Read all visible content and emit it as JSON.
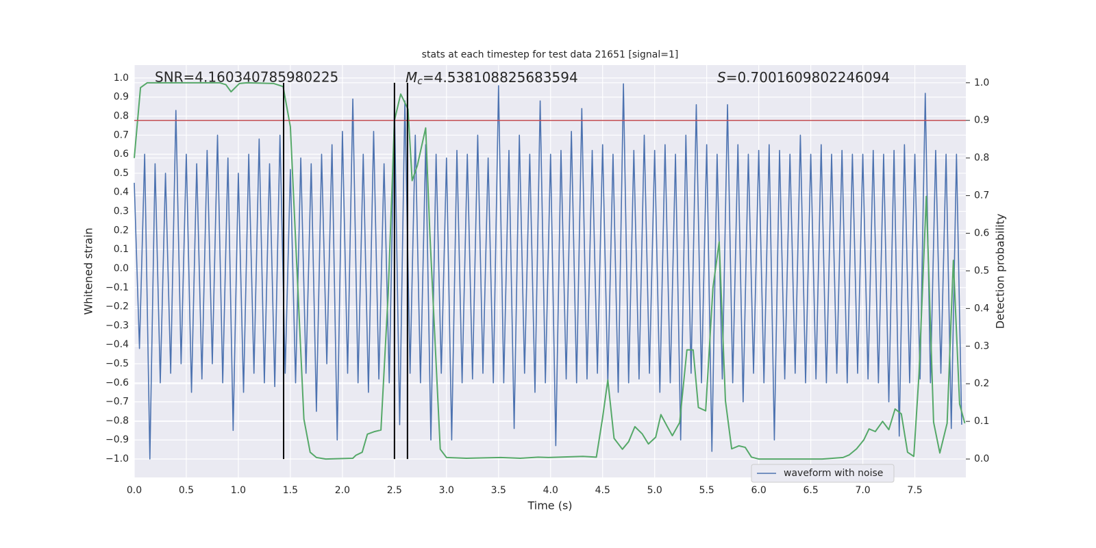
{
  "chart_data": {
    "type": "line",
    "title": "stats at each timestep for test data 21651 [signal=1]",
    "xlabel": "Time (s)",
    "ylabel": "Whitened strain",
    "y2label": "Detection probability",
    "xlim": [
      0,
      7.99
    ],
    "ylim": [
      -1.097,
      1.068
    ],
    "y2lim": [
      -0.049,
      1.047
    ],
    "grid": true,
    "legend": "lower right",
    "xticks": [
      {
        "value": 0,
        "label": "0.0"
      },
      {
        "value": 0.5,
        "label": "0.5"
      },
      {
        "value": 1,
        "label": "1.0"
      },
      {
        "value": 1.5,
        "label": "1.5"
      },
      {
        "value": 2,
        "label": "2.0"
      },
      {
        "value": 2.5,
        "label": "2.5"
      },
      {
        "value": 3,
        "label": "3.0"
      },
      {
        "value": 3.5,
        "label": "3.5"
      },
      {
        "value": 4,
        "label": "4.0"
      },
      {
        "value": 4.5,
        "label": "4.5"
      },
      {
        "value": 5,
        "label": "5.0"
      },
      {
        "value": 5.5,
        "label": "5.5"
      },
      {
        "value": 6,
        "label": "6.0"
      },
      {
        "value": 6.5,
        "label": "6.5"
      },
      {
        "value": 7,
        "label": "7.0"
      },
      {
        "value": 7.5,
        "label": "7.5"
      }
    ],
    "yticks": [
      {
        "value": -1,
        "label": "−1.0"
      },
      {
        "value": -0.9,
        "label": "−0.9"
      },
      {
        "value": -0.8,
        "label": "−0.8"
      },
      {
        "value": -0.7,
        "label": "−0.7"
      },
      {
        "value": -0.6,
        "label": "−0.6"
      },
      {
        "value": -0.5,
        "label": "−0.5"
      },
      {
        "value": -0.4,
        "label": "−0.4"
      },
      {
        "value": -0.3,
        "label": "−0.3"
      },
      {
        "value": -0.2,
        "label": "−0.2"
      },
      {
        "value": -0.1,
        "label": "−0.1"
      },
      {
        "value": 0,
        "label": "0.0"
      },
      {
        "value": 0.1,
        "label": "0.1"
      },
      {
        "value": 0.2,
        "label": "0.2"
      },
      {
        "value": 0.3,
        "label": "0.3"
      },
      {
        "value": 0.4,
        "label": "0.4"
      },
      {
        "value": 0.5,
        "label": "0.5"
      },
      {
        "value": 0.6,
        "label": "0.6"
      },
      {
        "value": 0.7,
        "label": "0.7"
      },
      {
        "value": 0.8,
        "label": "0.8"
      },
      {
        "value": 0.9,
        "label": "0.9"
      },
      {
        "value": 1,
        "label": "1.0"
      }
    ],
    "y2ticks": [
      {
        "value": 0,
        "label": "0.0"
      },
      {
        "value": 0.1,
        "label": "0.1"
      },
      {
        "value": 0.2,
        "label": "0.2"
      },
      {
        "value": 0.3,
        "label": "0.3"
      },
      {
        "value": 0.4,
        "label": "0.4"
      },
      {
        "value": 0.5,
        "label": "0.5"
      },
      {
        "value": 0.6,
        "label": "0.6"
      },
      {
        "value": 0.7,
        "label": "0.7"
      },
      {
        "value": 0.8,
        "label": "0.8"
      },
      {
        "value": 0.9,
        "label": "0.9"
      },
      {
        "value": 1,
        "label": "1.0"
      }
    ],
    "series": [
      {
        "name": "waveform with noise",
        "color": "#4c72b0",
        "x": [
          0,
          0.05,
          0.1,
          0.15,
          0.2,
          0.25,
          0.3,
          0.35,
          0.4,
          0.45,
          0.5,
          0.55,
          0.6,
          0.65,
          0.7,
          0.75,
          0.8,
          0.85,
          0.9,
          0.95,
          1,
          1.05,
          1.1,
          1.15,
          1.2,
          1.25,
          1.3,
          1.35,
          1.4,
          1.45,
          1.5,
          1.55,
          1.6,
          1.65,
          1.7,
          1.75,
          1.8,
          1.85,
          1.9,
          1.95,
          2,
          2.05,
          2.1,
          2.15,
          2.2,
          2.25,
          2.3,
          2.35,
          2.4,
          2.45,
          2.5,
          2.55,
          2.6,
          2.65,
          2.7,
          2.75,
          2.8,
          2.85,
          2.9,
          2.95,
          3,
          3.05,
          3.1,
          3.15,
          3.2,
          3.25,
          3.3,
          3.35,
          3.4,
          3.45,
          3.5,
          3.55,
          3.6,
          3.65,
          3.7,
          3.75,
          3.8,
          3.85,
          3.9,
          3.95,
          4,
          4.05,
          4.1,
          4.15,
          4.2,
          4.25,
          4.3,
          4.35,
          4.4,
          4.45,
          4.5,
          4.55,
          4.6,
          4.65,
          4.7,
          4.75,
          4.8,
          4.85,
          4.9,
          4.95,
          5,
          5.05,
          5.1,
          5.15,
          5.2,
          5.25,
          5.3,
          5.35,
          5.4,
          5.45,
          5.5,
          5.55,
          5.6,
          5.65,
          5.7,
          5.75,
          5.8,
          5.85,
          5.9,
          5.95,
          6,
          6.05,
          6.1,
          6.15,
          6.2,
          6.25,
          6.3,
          6.35,
          6.4,
          6.45,
          6.5,
          6.55,
          6.6,
          6.65,
          6.7,
          6.75,
          6.8,
          6.85,
          6.9,
          6.95,
          7,
          7.05,
          7.1,
          7.15,
          7.2,
          7.25,
          7.3,
          7.35,
          7.4,
          7.45,
          7.5,
          7.55,
          7.6,
          7.65,
          7.7,
          7.75,
          7.8,
          7.85,
          7.9,
          7.95
        ],
        "values": [
          0.45,
          -0.42,
          0.6,
          -1.0,
          0.55,
          -0.6,
          0.5,
          -0.55,
          0.83,
          -0.5,
          0.6,
          -0.65,
          0.55,
          -0.58,
          0.62,
          -0.5,
          0.7,
          -0.6,
          0.58,
          -0.85,
          0.5,
          -0.65,
          0.6,
          -0.55,
          0.68,
          -0.6,
          0.55,
          -0.62,
          0.7,
          -0.55,
          0.52,
          -0.6,
          0.58,
          -0.55,
          0.55,
          -0.75,
          0.6,
          -0.5,
          0.65,
          -0.9,
          0.72,
          -0.55,
          0.89,
          -0.6,
          0.6,
          -0.65,
          0.72,
          -0.58,
          0.55,
          -0.6,
          0.86,
          -0.82,
          0.88,
          -0.55,
          0.7,
          -0.6,
          0.65,
          -0.9,
          0.6,
          -0.55,
          0.58,
          -0.9,
          0.62,
          -0.6,
          0.6,
          -0.58,
          0.7,
          -0.55,
          0.58,
          -0.6,
          0.96,
          -0.6,
          0.62,
          -0.84,
          0.7,
          -0.55,
          0.6,
          -0.65,
          0.88,
          -0.6,
          0.6,
          -0.93,
          0.62,
          -0.58,
          0.72,
          -0.6,
          0.84,
          -0.58,
          0.62,
          -0.55,
          0.65,
          -0.6,
          0.6,
          -0.65,
          0.97,
          -0.6,
          0.62,
          -0.58,
          0.7,
          -0.55,
          0.62,
          -0.65,
          0.65,
          -0.6,
          0.6,
          -0.9,
          0.7,
          -0.55,
          0.86,
          -0.6,
          0.65,
          -0.96,
          0.6,
          -0.58,
          0.86,
          -0.6,
          0.65,
          -0.7,
          0.6,
          -0.55,
          0.62,
          -0.6,
          0.65,
          -0.9,
          0.62,
          -0.58,
          0.6,
          -0.55,
          0.7,
          -0.6,
          0.6,
          -0.58,
          0.65,
          -0.6,
          0.6,
          -0.55,
          0.62,
          -0.6,
          0.6,
          -0.55,
          0.6,
          -0.58,
          0.62,
          -0.6,
          0.6,
          -0.7,
          0.62,
          -0.88,
          0.65,
          -0.6,
          0.6,
          -0.58,
          0.92,
          -0.6,
          0.62,
          -0.55,
          0.6,
          -0.84,
          0.6,
          -0.82
        ]
      },
      {
        "color": "#55a868",
        "axis": "y2",
        "x": [
          0,
          0.06,
          0.125,
          0.82,
          0.88,
          0.93,
          1.01,
          1.08,
          1.34,
          1.43,
          1.5,
          1.55,
          1.63,
          1.69,
          1.75,
          1.84,
          2.1,
          2.13,
          2.19,
          2.24,
          2.31,
          2.37,
          2.44,
          2.5,
          2.56,
          2.63,
          2.67,
          2.72,
          2.8,
          2.84,
          2.94,
          3.0,
          3.19,
          3.52,
          3.71,
          3.88,
          3.98,
          4.31,
          4.44,
          4.5,
          4.55,
          4.61,
          4.69,
          4.75,
          4.81,
          4.88,
          4.94,
          5.01,
          5.06,
          5.12,
          5.17,
          5.24,
          5.31,
          5.37,
          5.42,
          5.49,
          5.56,
          5.62,
          5.68,
          5.74,
          5.81,
          5.87,
          5.93,
          6.0,
          6.61,
          6.81,
          6.87,
          6.94,
          7.01,
          7.06,
          7.12,
          7.19,
          7.25,
          7.31,
          7.37,
          7.43,
          7.49,
          7.54,
          7.61,
          7.68,
          7.74,
          7.81,
          7.87,
          7.93,
          7.98
        ],
        "values": [
          0.8,
          0.987,
          1.0,
          1.0,
          0.995,
          0.976,
          0.998,
          1.0,
          0.998,
          0.99,
          0.883,
          0.583,
          0.106,
          0.018,
          0.004,
          0.0,
          0.002,
          0.01,
          0.018,
          0.066,
          0.073,
          0.077,
          0.44,
          0.9,
          0.97,
          0.93,
          0.74,
          0.78,
          0.88,
          0.6,
          0.026,
          0.004,
          0.002,
          0.004,
          0.002,
          0.005,
          0.004,
          0.007,
          0.005,
          0.11,
          0.21,
          0.055,
          0.026,
          0.046,
          0.086,
          0.067,
          0.04,
          0.058,
          0.118,
          0.087,
          0.062,
          0.097,
          0.29,
          0.29,
          0.137,
          0.128,
          0.455,
          0.577,
          0.155,
          0.027,
          0.035,
          0.031,
          0.005,
          0.0,
          0.0,
          0.004,
          0.011,
          0.027,
          0.051,
          0.08,
          0.073,
          0.1,
          0.078,
          0.133,
          0.12,
          0.018,
          0.007,
          0.226,
          0.698,
          0.098,
          0.016,
          0.095,
          0.528,
          0.146,
          0.095
        ]
      }
    ],
    "hlines": [
      {
        "value": 0.9,
        "axis": "y2",
        "color": "#c44e52"
      }
    ],
    "vlines": [
      {
        "x": 1.435
      },
      {
        "x": 2.5
      },
      {
        "x": 2.625
      }
    ],
    "vline_color": "#000000",
    "annotations": [
      {
        "text": "SNR=4.160340785980225"
      },
      {
        "symbol": "M",
        "subscript": "c",
        "text": "=4.538108825683594"
      },
      {
        "symbol": "S",
        "text": "=0.7001609802246094"
      }
    ]
  }
}
